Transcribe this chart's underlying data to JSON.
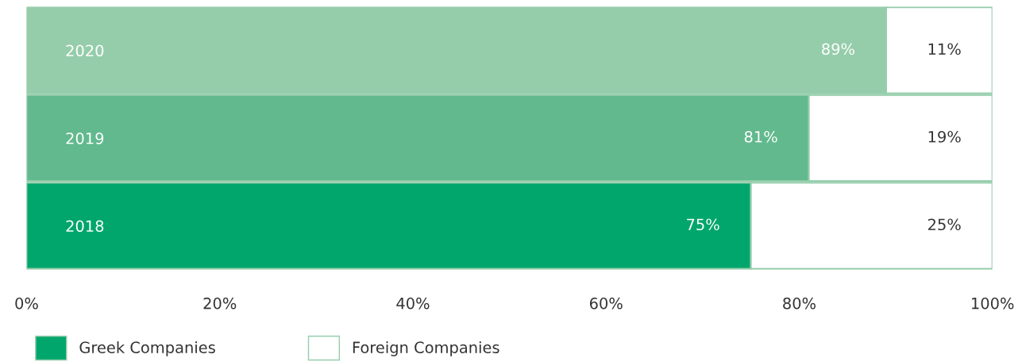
{
  "chart_data": {
    "type": "bar",
    "orientation": "horizontal",
    "stacked": true,
    "categories": [
      "2020",
      "2019",
      "2018"
    ],
    "series": [
      {
        "name": "Greek Companies",
        "color": "#00a66c",
        "colors": [
          "#95cdab",
          "#62b98e",
          "#00a66c"
        ],
        "values": [
          89,
          81,
          75
        ],
        "value_labels": [
          "89%",
          "81%",
          "75%"
        ]
      },
      {
        "name": "Foreign Companies",
        "color": "#ffffff",
        "values": [
          11,
          19,
          25
        ],
        "value_labels": [
          "11%",
          "19%",
          "25%"
        ]
      }
    ],
    "xlim": [
      0,
      100
    ],
    "xticks": [
      {
        "value": 0,
        "label": "0%"
      },
      {
        "value": 20,
        "label": "20%"
      },
      {
        "value": 40,
        "label": "40%"
      },
      {
        "value": 60,
        "label": "60%"
      },
      {
        "value": 80,
        "label": "80%"
      },
      {
        "value": 100,
        "label": "100%"
      }
    ],
    "grid": false,
    "legend": "bottom"
  }
}
